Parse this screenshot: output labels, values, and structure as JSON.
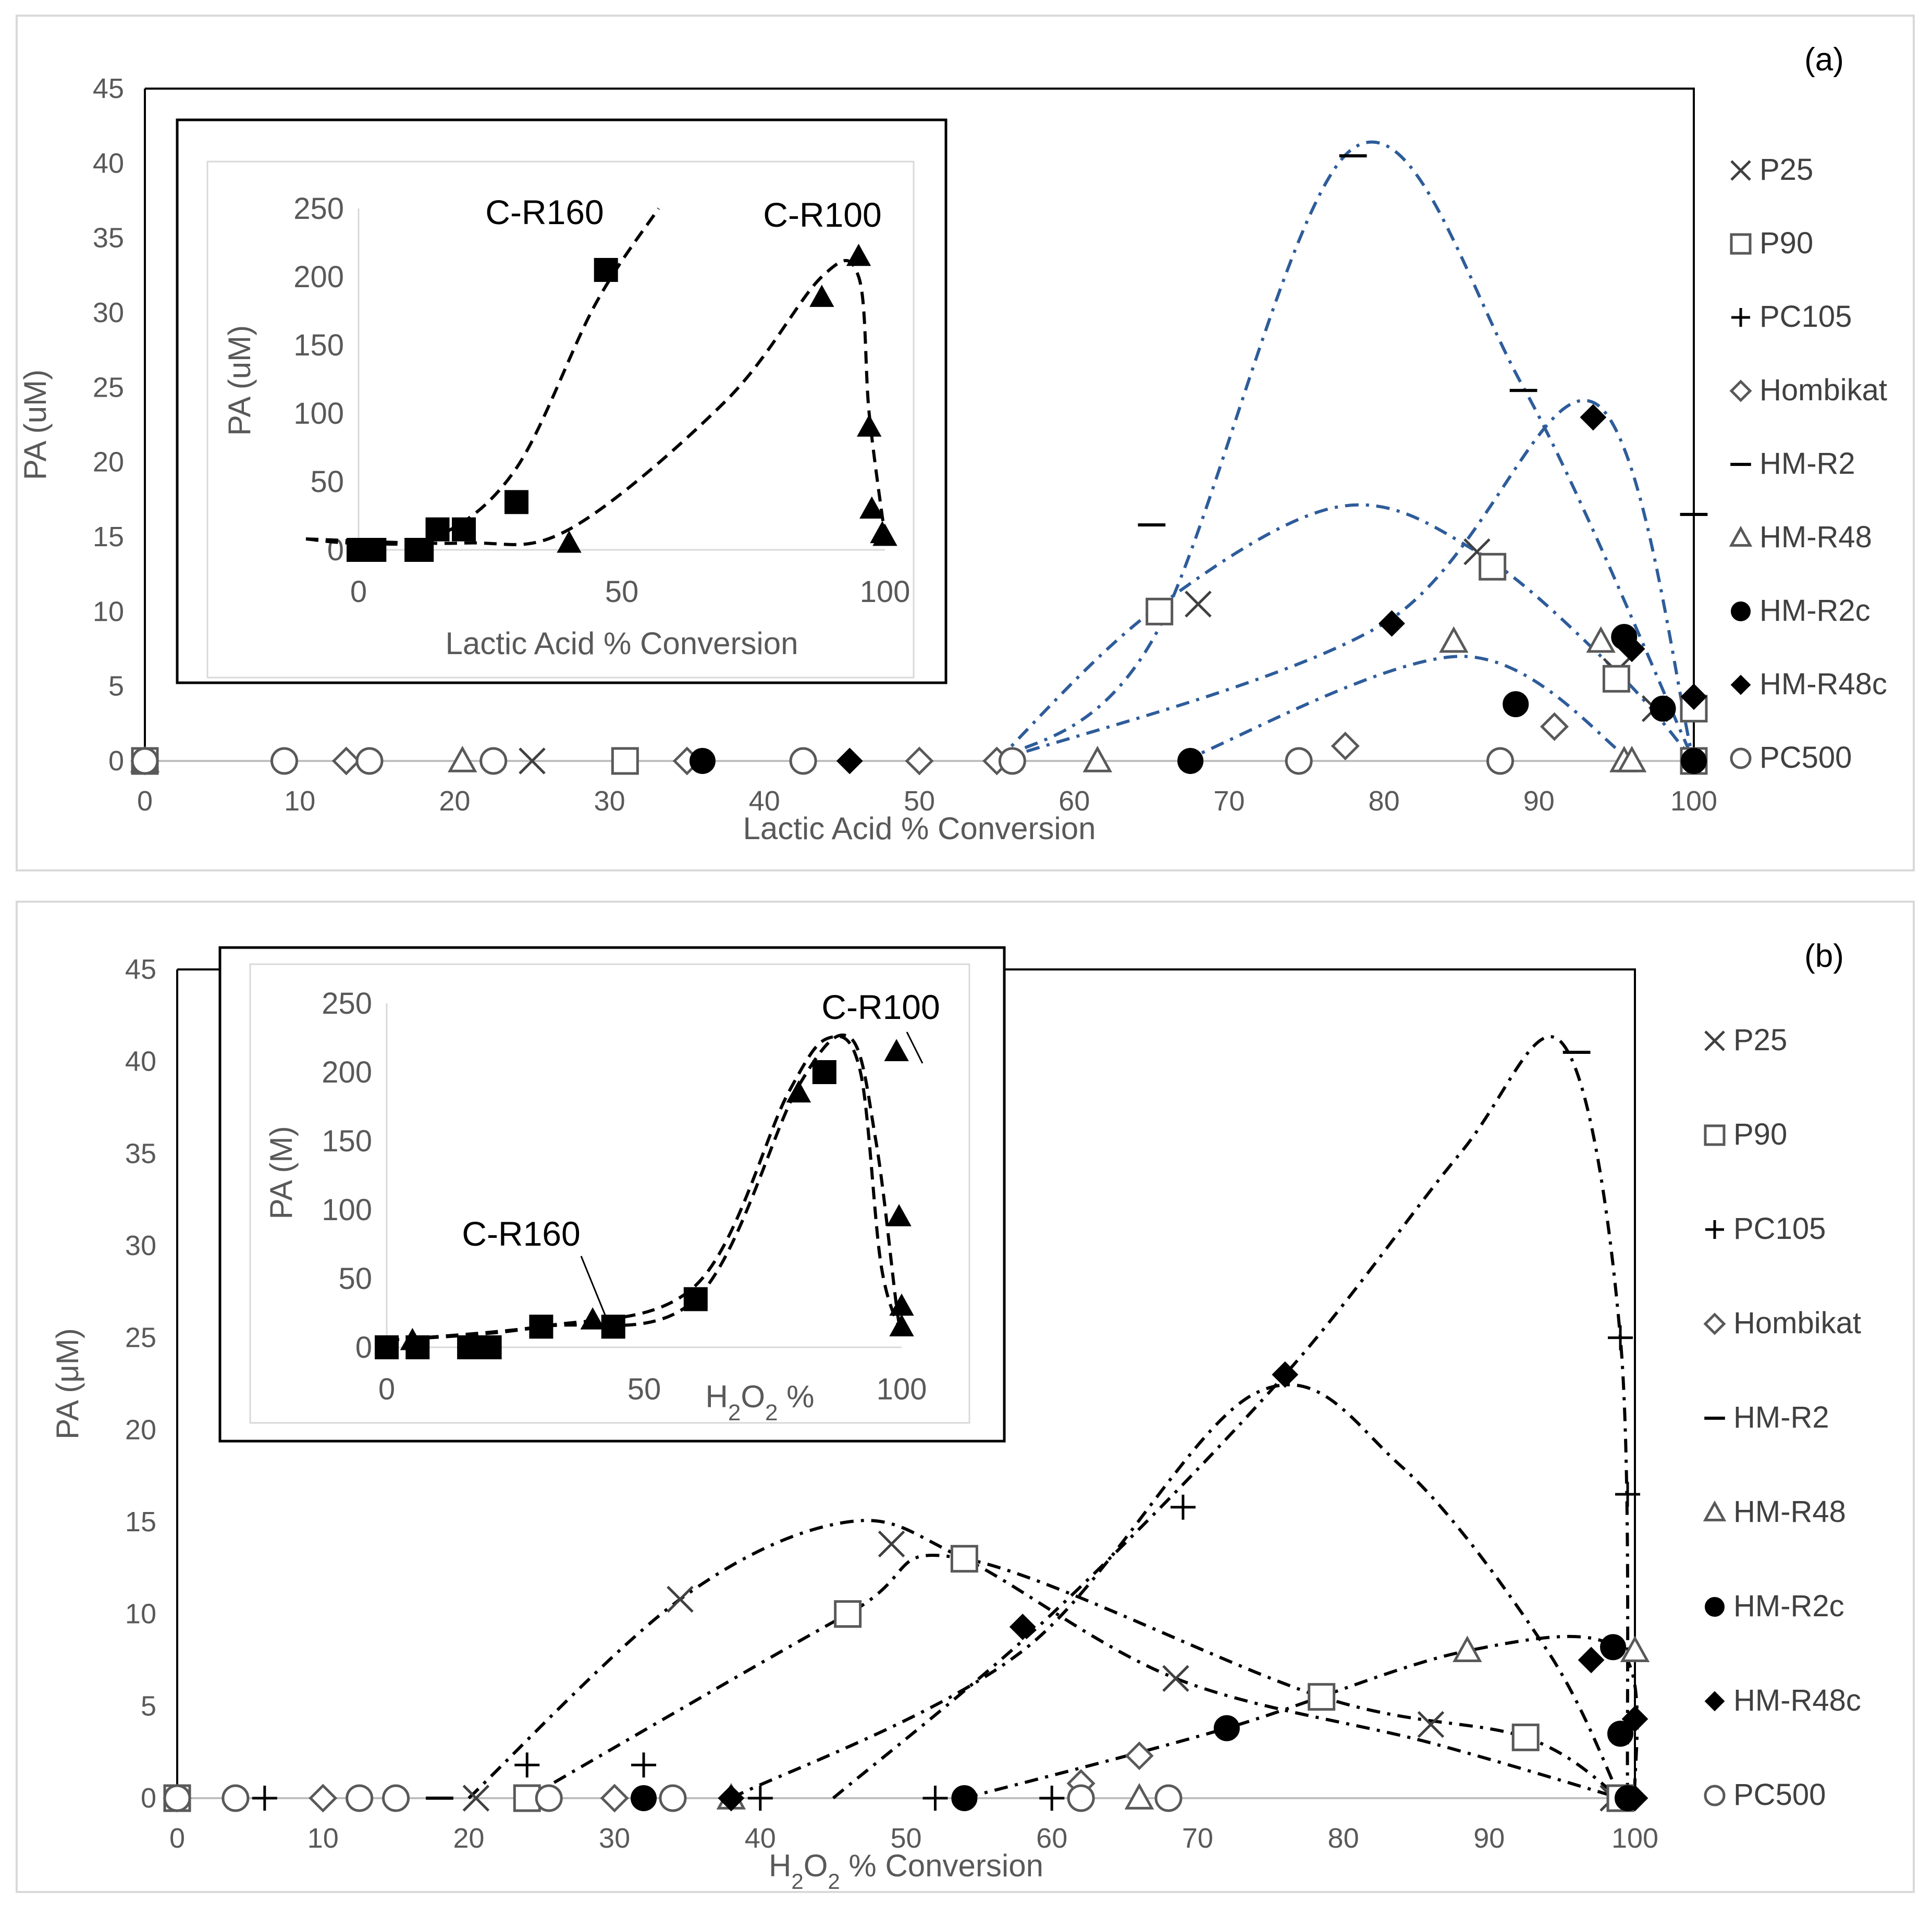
{
  "chart_data": [
    {
      "type": "scatter",
      "panel": "(a)",
      "xlabel": "Lactic Acid % Conversion",
      "ylabel": "PA (uM)",
      "xlim": [
        0,
        100
      ],
      "ylim": [
        0,
        45
      ],
      "xticks": [
        0,
        10,
        20,
        30,
        40,
        50,
        60,
        70,
        80,
        90,
        100
      ],
      "yticks": [
        0,
        5,
        10,
        15,
        20,
        25,
        30,
        35,
        40,
        45
      ],
      "series": [
        {
          "name": "P25",
          "marker": "x",
          "points": [
            [
              0,
              0
            ],
            [
              25,
              0
            ],
            [
              68,
              10.5
            ],
            [
              86,
              14
            ],
            [
              95,
              6
            ],
            [
              97.5,
              3.5
            ],
            [
              100,
              0
            ]
          ]
        },
        {
          "name": "P90",
          "marker": "square",
          "points": [
            [
              0,
              0
            ],
            [
              31,
              0
            ],
            [
              65.5,
              10
            ],
            [
              87,
              13
            ],
            [
              95,
              5.5
            ],
            [
              100,
              3.5
            ],
            [
              100,
              0
            ]
          ]
        },
        {
          "name": "PC105",
          "marker": "plus",
          "points": [
            [
              0,
              0
            ],
            [
              100,
              0
            ]
          ]
        },
        {
          "name": "Hombikat",
          "marker": "diamond",
          "points": [
            [
              0,
              0
            ],
            [
              13,
              0
            ],
            [
              35,
              0
            ],
            [
              50,
              0
            ],
            [
              55,
              0
            ],
            [
              77.5,
              1
            ],
            [
              91,
              2.3
            ]
          ]
        },
        {
          "name": "HM-R2",
          "marker": "dash",
          "points": [
            [
              65,
              15.8
            ],
            [
              78,
              40.5
            ],
            [
              89,
              24.8
            ],
            [
              100,
              16.5
            ]
          ]
        },
        {
          "name": "HM-R48",
          "marker": "triangle",
          "points": [
            [
              0,
              0
            ],
            [
              20.5,
              0
            ],
            [
              61.5,
              0
            ],
            [
              84.5,
              8
            ],
            [
              94,
              8
            ],
            [
              95.5,
              0
            ],
            [
              96,
              0
            ]
          ]
        },
        {
          "name": "HM-R2c",
          "marker": "circle-filled",
          "points": [
            [
              0,
              0
            ],
            [
              36,
              0
            ],
            [
              67.5,
              0
            ],
            [
              88.5,
              3.8
            ],
            [
              95.5,
              8.3
            ],
            [
              98,
              3.5
            ],
            [
              100,
              0
            ]
          ]
        },
        {
          "name": "HM-R48c",
          "marker": "diamond-filled",
          "points": [
            [
              0,
              0
            ],
            [
              45.5,
              0
            ],
            [
              80.5,
              9.2
            ],
            [
              93.5,
              23
            ],
            [
              96,
              7.5
            ],
            [
              100,
              4.3
            ],
            [
              100,
              0
            ]
          ]
        },
        {
          "name": "PC500",
          "marker": "circle-open",
          "points": [
            [
              0,
              0
            ],
            [
              9,
              0
            ],
            [
              14.5,
              0
            ],
            [
              22.5,
              0
            ],
            [
              42.5,
              0
            ],
            [
              56,
              0
            ],
            [
              74.5,
              0
            ],
            [
              87.5,
              0
            ]
          ]
        }
      ],
      "legend": [
        "P25",
        "P90",
        "PC105",
        "Hombikat",
        "HM-R2",
        "HM-R48",
        "HM-R2c",
        "HM-R48c",
        "PC500"
      ],
      "legend_position": "right",
      "inset": {
        "xlabel": "Lactic Acid % Conversion",
        "ylabel": "PA (uM)",
        "xlim": [
          0,
          100
        ],
        "ylim": [
          0,
          250
        ],
        "xticks": [
          0,
          50,
          100
        ],
        "yticks": [
          0,
          50,
          100,
          150,
          200,
          250
        ],
        "annotations": [
          "C-R160",
          "C-R100"
        ],
        "series": [
          {
            "name": "C-R160",
            "marker": "square-filled",
            "points": [
              [
                0,
                0
              ],
              [
                2,
                0
              ],
              [
                3,
                0
              ],
              [
                11,
                0
              ],
              [
                12,
                0
              ],
              [
                15,
                15
              ],
              [
                20,
                15
              ],
              [
                30,
                35
              ],
              [
                47,
                205
              ]
            ]
          },
          {
            "name": "C-R100",
            "marker": "triangle-filled",
            "points": [
              [
                40,
                5
              ],
              [
                88,
                185
              ],
              [
                95,
                215
              ],
              [
                97,
                90
              ],
              [
                97.5,
                30
              ],
              [
                99.5,
                12
              ],
              [
                100,
                10
              ]
            ]
          }
        ]
      }
    },
    {
      "type": "scatter",
      "panel": "(b)",
      "xlabel": "H2O2 % Conversion",
      "ylabel": "PA (μM)",
      "xlim": [
        0,
        100
      ],
      "ylim": [
        0,
        45
      ],
      "xticks": [
        0,
        10,
        20,
        30,
        40,
        50,
        60,
        70,
        80,
        90,
        100
      ],
      "yticks": [
        0,
        5,
        10,
        15,
        20,
        25,
        30,
        35,
        40,
        45
      ],
      "series": [
        {
          "name": "P25",
          "marker": "x",
          "points": [
            [
              0,
              0
            ],
            [
              20.5,
              0
            ],
            [
              34.5,
              10.8
            ],
            [
              49,
              13.8
            ],
            [
              68.5,
              6.5
            ],
            [
              86,
              4
            ],
            [
              98.5,
              0
            ]
          ]
        },
        {
          "name": "P90",
          "marker": "square",
          "points": [
            [
              0,
              0
            ],
            [
              24,
              0
            ],
            [
              46,
              10
            ],
            [
              54,
              13
            ],
            [
              78.5,
              5.5
            ],
            [
              92.5,
              3.3
            ],
            [
              99,
              0
            ]
          ]
        },
        {
          "name": "PC105",
          "marker": "plus",
          "points": [
            [
              0,
              0
            ],
            [
              6,
              0
            ],
            [
              24,
              1.8
            ],
            [
              32,
              1.8
            ],
            [
              40,
              0
            ],
            [
              52,
              0
            ],
            [
              60,
              0
            ],
            [
              69,
              15.8
            ],
            [
              99,
              25
            ],
            [
              99.5,
              16.5
            ]
          ]
        },
        {
          "name": "Hombikat",
          "marker": "diamond",
          "points": [
            [
              0,
              0
            ],
            [
              10,
              0
            ],
            [
              30,
              0
            ],
            [
              62,
              0.8
            ],
            [
              66,
              2.3
            ]
          ]
        },
        {
          "name": "HM-R2",
          "marker": "dash",
          "points": [
            [
              18,
              0
            ],
            [
              96,
              40.5
            ]
          ]
        },
        {
          "name": "HM-R48",
          "marker": "triangle",
          "points": [
            [
              38,
              0
            ],
            [
              66,
              0
            ],
            [
              88.5,
              8
            ],
            [
              100,
              8
            ]
          ]
        },
        {
          "name": "HM-R2c",
          "marker": "circle-filled",
          "points": [
            [
              32,
              0
            ],
            [
              54,
              0
            ],
            [
              72,
              3.8
            ],
            [
              98.5,
              8.2
            ],
            [
              99,
              3.5
            ],
            [
              99.5,
              0
            ]
          ]
        },
        {
          "name": "HM-R48c",
          "marker": "diamond-filled",
          "points": [
            [
              38,
              0
            ],
            [
              58,
              9.3
            ],
            [
              76,
              23
            ],
            [
              97,
              7.5
            ],
            [
              100,
              4.3
            ],
            [
              100,
              0
            ]
          ]
        },
        {
          "name": "PC500",
          "marker": "circle-open",
          "points": [
            [
              0,
              0
            ],
            [
              4,
              0
            ],
            [
              12.5,
              0
            ],
            [
              15,
              0
            ],
            [
              25.5,
              0
            ],
            [
              34,
              0
            ],
            [
              62,
              0
            ],
            [
              68,
              0
            ]
          ]
        }
      ],
      "legend": [
        "P25",
        "P90",
        "PC105",
        "Hombikat",
        "HM-R2",
        "HM-R48",
        "HM-R2c",
        "HM-R48c",
        "PC500"
      ],
      "legend_position": "right",
      "inset": {
        "xlabel": "H2O2 %",
        "ylabel": "PA (M)",
        "xlim": [
          0,
          100
        ],
        "ylim": [
          0,
          250
        ],
        "xticks": [
          0,
          50,
          100
        ],
        "yticks": [
          0,
          50,
          100,
          150,
          200,
          250
        ],
        "annotations": [
          "C-R160",
          "C-R100"
        ],
        "series": [
          {
            "name": "C-R160",
            "marker": "square-filled",
            "points": [
              [
                0,
                0
              ],
              [
                6,
                0
              ],
              [
                16,
                0
              ],
              [
                20,
                0
              ],
              [
                30,
                15
              ],
              [
                44,
                15
              ],
              [
                60,
                35
              ],
              [
                85,
                200
              ]
            ]
          },
          {
            "name": "C-R100",
            "marker": "triangle-filled",
            "points": [
              [
                5,
                5
              ],
              [
                40,
                20
              ],
              [
                80,
                185
              ],
              [
                99,
                215
              ],
              [
                99.5,
                95
              ],
              [
                100,
                30
              ],
              [
                100,
                15
              ]
            ]
          }
        ]
      }
    }
  ]
}
